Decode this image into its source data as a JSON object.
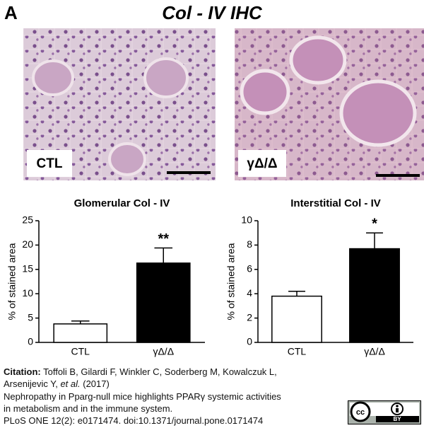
{
  "panel": "A",
  "title": "Col - IV IHC",
  "images": [
    {
      "label": "CTL"
    },
    {
      "label": "γΔ/Δ"
    }
  ],
  "chart_data": [
    {
      "type": "bar",
      "title": "Glomerular Col - IV",
      "ylabel": "% of stained area",
      "categories": [
        "CTL",
        "γΔ/Δ"
      ],
      "values": [
        3.8,
        16.3
      ],
      "errors": [
        0.6,
        3.1
      ],
      "colors": [
        "#ffffff",
        "#000000"
      ],
      "significance": [
        null,
        "**"
      ],
      "ylim": [
        0,
        25
      ],
      "yticks": [
        0,
        5,
        10,
        15,
        20,
        25
      ]
    },
    {
      "type": "bar",
      "title": "Interstitial Col - IV",
      "ylabel": "% of stained area",
      "categories": [
        "CTL",
        "γΔ/Δ"
      ],
      "values": [
        3.8,
        7.7
      ],
      "errors": [
        0.4,
        1.3
      ],
      "colors": [
        "#ffffff",
        "#000000"
      ],
      "significance": [
        null,
        "*"
      ],
      "ylim": [
        0,
        10
      ],
      "yticks": [
        0,
        2,
        4,
        6,
        8,
        10
      ]
    }
  ],
  "citation": {
    "label": "Citation:",
    "line1": " Toffoli B, Gilardi F, Winkler C, Soderberg M, Kowalczuk L,",
    "line2a": "Arsenijevic Y, ",
    "line2b": "et al.",
    "line2c": " (2017)",
    "line3": "Nephropathy in Pparg-null mice highlights PPARγ systemic activities",
    "line4": "in metabolism and in the immune system.",
    "line5": "PLoS ONE 12(2): e0171474. doi:10.1371/journal.pone.0171474"
  },
  "license": {
    "badge": "BY"
  }
}
